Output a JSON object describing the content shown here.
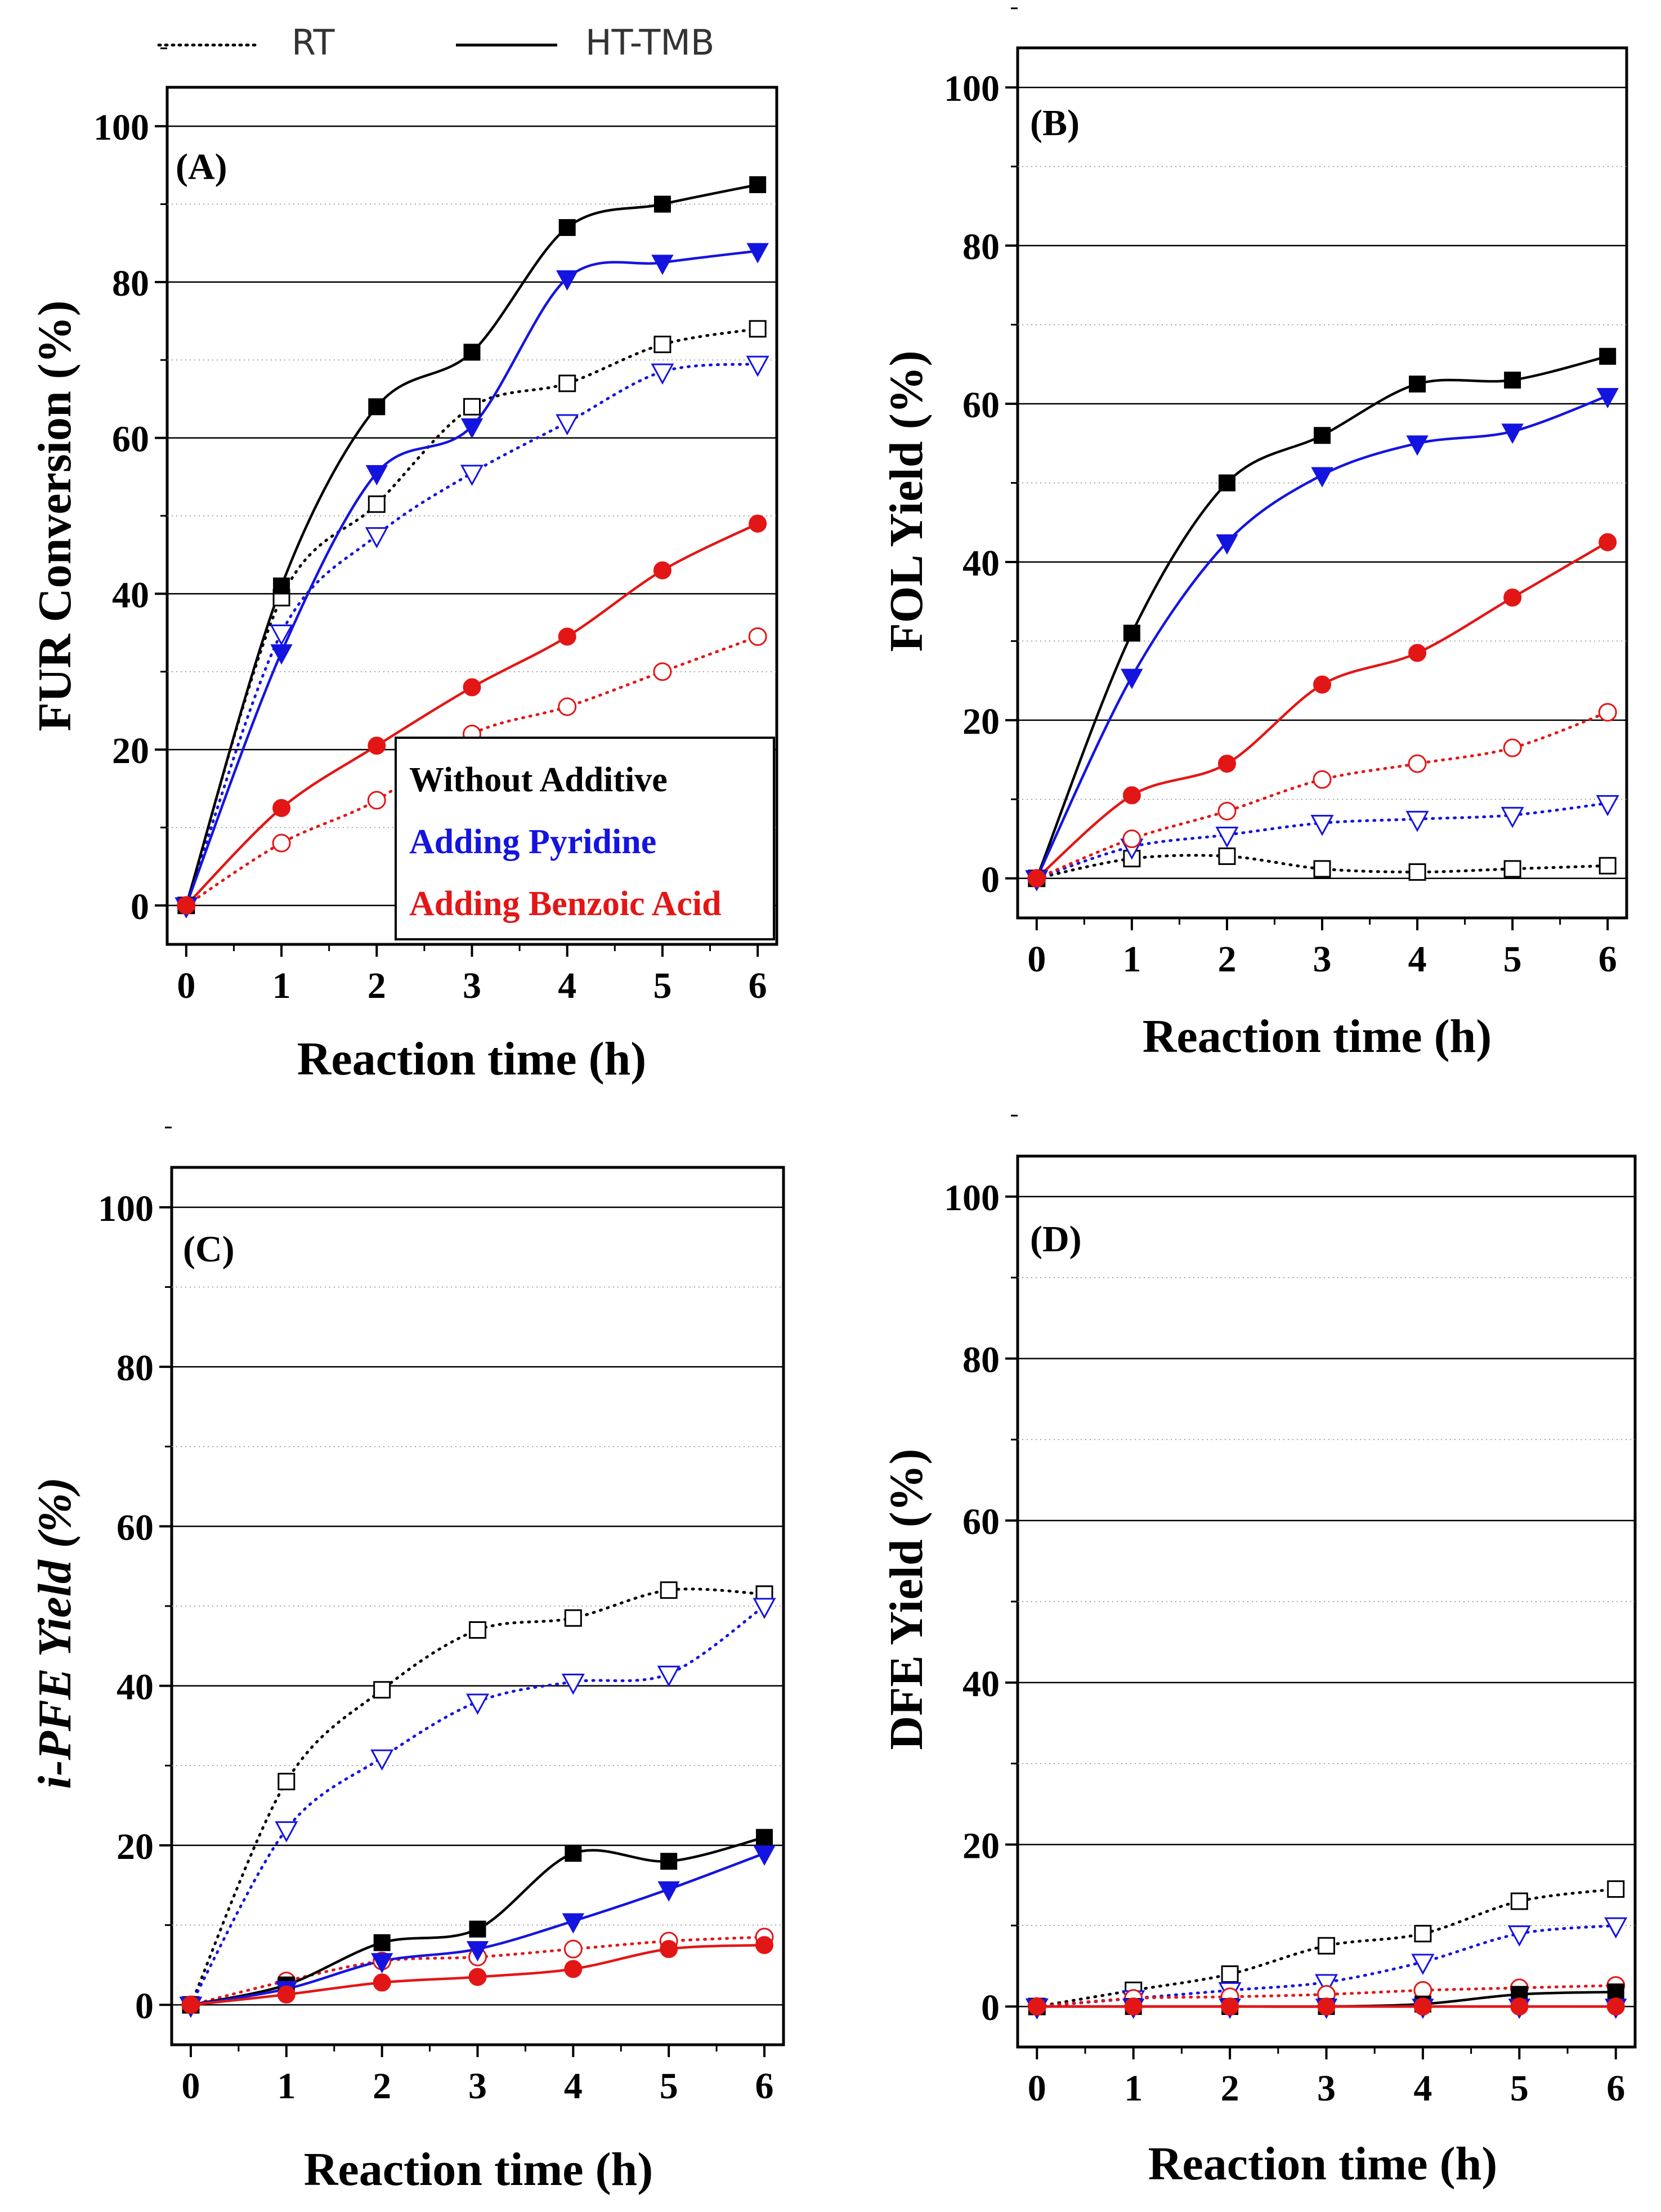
{
  "figure_legend": {
    "rt": "RT",
    "ht": "HT-TMB"
  },
  "series_legend": {
    "without": "Without Additive",
    "pyridine": "Adding Pyridine",
    "benzoic": "Adding Benzoic Acid"
  },
  "colors": {
    "without": "#000000",
    "pyridine": "#1414e0",
    "benzoic": "#e31616",
    "grid": "#000000",
    "minor_grid": "#888888"
  },
  "chart_data": [
    {
      "type": "line",
      "panel": "(A)",
      "title": "",
      "xlabel": "Reaction time (h)",
      "ylabel": "FUR Conversion (%)",
      "x": [
        0,
        1,
        2,
        3,
        4,
        5,
        6
      ],
      "xlim": [
        -0.2,
        6.2
      ],
      "ylim": [
        -5,
        105
      ],
      "xticks": [
        "0",
        "1",
        "2",
        "3",
        "4",
        "5",
        "6"
      ],
      "yticks": [
        "0",
        "20",
        "40",
        "60",
        "80",
        "100"
      ],
      "series": [
        {
          "name": "Without Additive HT-TMB",
          "color": "without",
          "style": "solid",
          "marker": "square-filled",
          "values": [
            0,
            41,
            64,
            71,
            87,
            90,
            92.5
          ]
        },
        {
          "name": "Adding Pyridine HT-TMB",
          "color": "pyridine",
          "style": "solid",
          "marker": "triangle-filled",
          "values": [
            0,
            32.5,
            55.5,
            61.5,
            80.5,
            82.5,
            84
          ]
        },
        {
          "name": "Adding Benzoic Acid HT-TMB",
          "color": "benzoic",
          "style": "solid",
          "marker": "circle-filled",
          "values": [
            0,
            12.5,
            20.5,
            28,
            34.5,
            43,
            49
          ]
        },
        {
          "name": "Without Additive RT",
          "color": "without",
          "style": "dotted",
          "marker": "square-open",
          "values": [
            0,
            39.5,
            51.5,
            64,
            67,
            72,
            74
          ]
        },
        {
          "name": "Adding Pyridine RT",
          "color": "pyridine",
          "style": "dotted",
          "marker": "triangle-open",
          "values": [
            0,
            35,
            47.5,
            55.5,
            62,
            68.5,
            69.5
          ]
        },
        {
          "name": "Adding Benzoic Acid RT",
          "color": "benzoic",
          "style": "dotted",
          "marker": "circle-open",
          "values": [
            0,
            8,
            13.5,
            22,
            25.5,
            30,
            34.5
          ]
        }
      ]
    },
    {
      "type": "line",
      "panel": "(B)",
      "title": "",
      "xlabel": "Reaction time (h)",
      "ylabel": "FOL Yield (%)",
      "x": [
        0,
        1,
        2,
        3,
        4,
        5,
        6
      ],
      "xlim": [
        -0.2,
        6.2
      ],
      "ylim": [
        -5,
        105
      ],
      "xticks": [
        "0",
        "1",
        "2",
        "3",
        "4",
        "5",
        "6"
      ],
      "yticks": [
        "0",
        "20",
        "40",
        "60",
        "80",
        "100"
      ],
      "series": [
        {
          "name": "Without Additive HT-TMB",
          "color": "without",
          "style": "solid",
          "marker": "square-filled",
          "values": [
            0,
            31,
            50,
            56,
            62.5,
            63,
            66
          ]
        },
        {
          "name": "Adding Pyridine HT-TMB",
          "color": "pyridine",
          "style": "solid",
          "marker": "triangle-filled",
          "values": [
            0,
            25.5,
            42.5,
            51,
            55,
            56.5,
            61
          ]
        },
        {
          "name": "Adding Benzoic Acid HT-TMB",
          "color": "benzoic",
          "style": "solid",
          "marker": "circle-filled",
          "values": [
            0,
            10.5,
            14.5,
            24.5,
            28.5,
            35.5,
            42.5
          ]
        },
        {
          "name": "Without Additive RT",
          "color": "without",
          "style": "dotted",
          "marker": "square-open",
          "values": [
            0,
            2.5,
            2.8,
            1.2,
            0.8,
            1.2,
            1.6
          ]
        },
        {
          "name": "Adding Pyridine RT",
          "color": "pyridine",
          "style": "dotted",
          "marker": "triangle-open",
          "values": [
            0,
            4,
            5.5,
            7,
            7.5,
            8,
            9.5
          ]
        },
        {
          "name": "Adding Benzoic Acid RT",
          "color": "benzoic",
          "style": "dotted",
          "marker": "circle-open",
          "values": [
            0,
            5,
            8.5,
            12.5,
            14.5,
            16.5,
            21
          ]
        }
      ]
    },
    {
      "type": "line",
      "panel": "(C)",
      "title": "",
      "xlabel": "Reaction time (h)",
      "ylabel": "i-PFE Yield (%)",
      "x": [
        0,
        1,
        2,
        3,
        4,
        5,
        6
      ],
      "xlim": [
        -0.2,
        6.2
      ],
      "ylim": [
        -5,
        105
      ],
      "xticks": [
        "0",
        "1",
        "2",
        "3",
        "4",
        "5",
        "6"
      ],
      "yticks": [
        "0",
        "20",
        "40",
        "60",
        "80",
        "100"
      ],
      "series": [
        {
          "name": "Without Additive HT-TMB",
          "color": "without",
          "style": "solid",
          "marker": "square-filled",
          "values": [
            0,
            2.5,
            7.8,
            9.5,
            19,
            18,
            21
          ]
        },
        {
          "name": "Adding Pyridine HT-TMB",
          "color": "pyridine",
          "style": "solid",
          "marker": "triangle-filled",
          "values": [
            0,
            2,
            5.5,
            7,
            10.5,
            14.5,
            19
          ]
        },
        {
          "name": "Adding Benzoic Acid HT-TMB",
          "color": "benzoic",
          "style": "solid",
          "marker": "circle-filled",
          "values": [
            0,
            1.3,
            2.8,
            3.5,
            4.5,
            7,
            7.5
          ]
        },
        {
          "name": "Without Additive RT",
          "color": "without",
          "style": "dotted",
          "marker": "square-open",
          "values": [
            0,
            28,
            39.5,
            47,
            48.5,
            52,
            51.5
          ]
        },
        {
          "name": "Adding Pyridine RT",
          "color": "pyridine",
          "style": "dotted",
          "marker": "triangle-open",
          "values": [
            0,
            22,
            31,
            38,
            40.5,
            41.5,
            50
          ]
        },
        {
          "name": "Adding Benzoic Acid RT",
          "color": "benzoic",
          "style": "dotted",
          "marker": "circle-open",
          "values": [
            0,
            3,
            5.5,
            6,
            7,
            8,
            8.5
          ]
        }
      ]
    },
    {
      "type": "line",
      "panel": "(D)",
      "title": "",
      "xlabel": "Reaction time (h)",
      "ylabel": "DFE Yield (%)",
      "x": [
        0,
        1,
        2,
        3,
        4,
        5,
        6
      ],
      "xlim": [
        -0.2,
        6.2
      ],
      "ylim": [
        -5,
        105
      ],
      "xticks": [
        "0",
        "1",
        "2",
        "3",
        "4",
        "5",
        "6"
      ],
      "yticks": [
        "0",
        "20",
        "40",
        "60",
        "80",
        "100"
      ],
      "series": [
        {
          "name": "Without Additive HT-TMB",
          "color": "without",
          "style": "solid",
          "marker": "square-filled",
          "values": [
            0,
            0,
            0,
            0,
            0.3,
            1.5,
            1.8
          ]
        },
        {
          "name": "Adding Pyridine HT-TMB",
          "color": "pyridine",
          "style": "solid",
          "marker": "triangle-filled",
          "values": [
            0,
            0,
            0,
            0,
            0,
            0,
            0
          ]
        },
        {
          "name": "Adding Benzoic Acid HT-TMB",
          "color": "benzoic",
          "style": "solid",
          "marker": "circle-filled",
          "values": [
            0,
            0,
            0,
            0,
            0,
            0,
            0
          ]
        },
        {
          "name": "Without Additive RT",
          "color": "without",
          "style": "dotted",
          "marker": "square-open",
          "values": [
            0,
            2,
            4,
            7.5,
            9,
            13,
            14.5
          ]
        },
        {
          "name": "Adding Pyridine RT",
          "color": "pyridine",
          "style": "dotted",
          "marker": "triangle-open",
          "values": [
            0,
            1,
            2,
            3,
            5.5,
            9,
            10
          ]
        },
        {
          "name": "Adding Benzoic Acid RT",
          "color": "benzoic",
          "style": "dotted",
          "marker": "circle-open",
          "values": [
            0,
            1,
            1.2,
            1.5,
            2,
            2.3,
            2.6
          ]
        }
      ]
    }
  ]
}
